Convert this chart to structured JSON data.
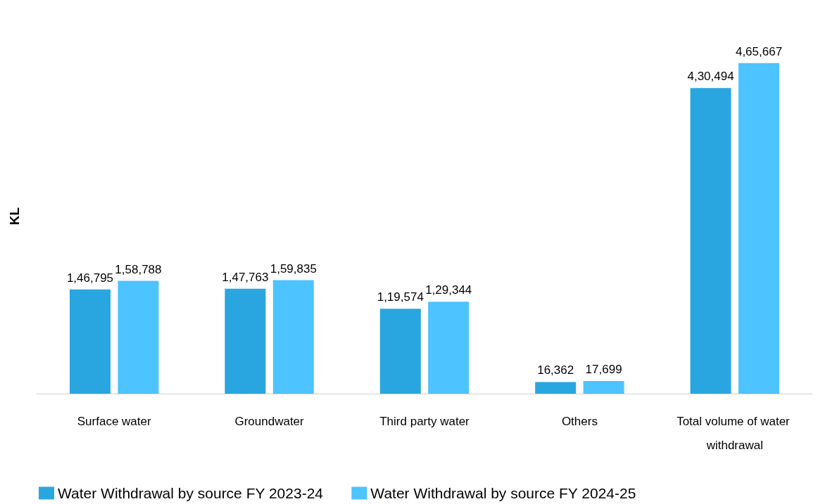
{
  "chart_data": {
    "type": "bar",
    "ylabel": "KL",
    "categories": [
      "Surface water",
      "Groundwater",
      "Third party water",
      "Others",
      "Total volume of water withdrawal"
    ],
    "series": [
      {
        "name": "Water Withdrawal by source FY 2023-24",
        "color": "#29a6df",
        "values": [
          146795,
          147763,
          119574,
          16362,
          430494
        ],
        "value_labels": [
          "1,46,795",
          "1,47,763",
          "1,19,574",
          "16,362",
          "4,30,494"
        ]
      },
      {
        "name": "Water Withdrawal by source FY 2024-25",
        "color": "#4dc3ff",
        "values": [
          158788,
          159835,
          129344,
          17699,
          465667
        ],
        "value_labels": [
          "1,58,788",
          "1,59,835",
          "1,29,344",
          "17,699",
          "4,65,667"
        ]
      }
    ],
    "legend": "bottom",
    "grid": false
  }
}
